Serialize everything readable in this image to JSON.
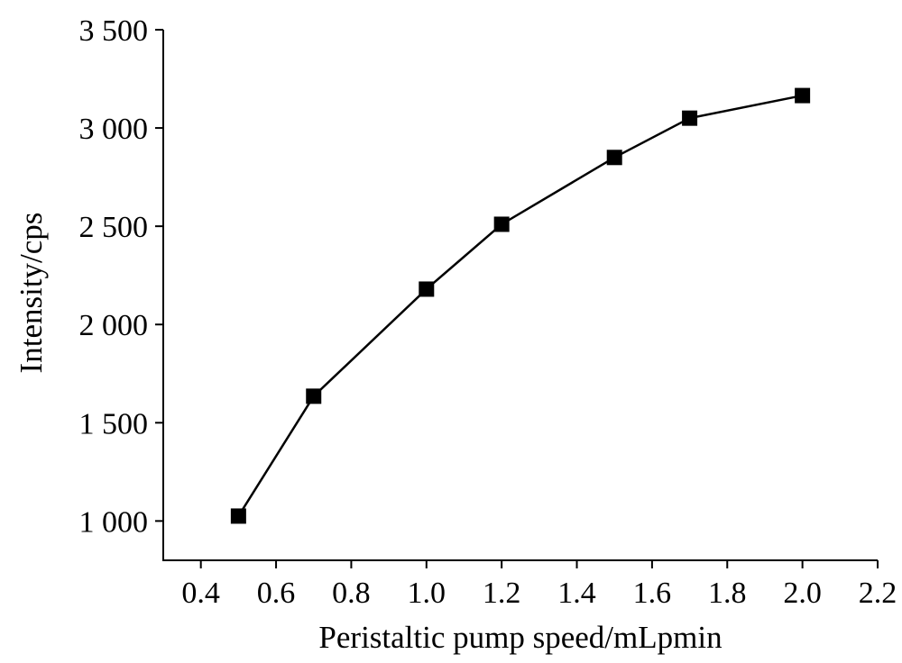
{
  "chart_data": {
    "type": "line",
    "xlabel": "Peristaltic pump speed/mLpmin",
    "ylabel": "Intensity/cps",
    "xlim": [
      0.3,
      2.2
    ],
    "ylim": [
      800,
      3500
    ],
    "x_ticks": [
      0.4,
      0.6,
      0.8,
      1.0,
      1.2,
      1.4,
      1.6,
      1.8,
      2.0,
      2.2
    ],
    "x_tick_labels": [
      "0.4",
      "0.6",
      "0.8",
      "1.0",
      "1.2",
      "1.4",
      "1.6",
      "1.8",
      "2.0",
      "2.2"
    ],
    "y_ticks": [
      1000,
      1500,
      2000,
      2500,
      3000,
      3500
    ],
    "y_tick_labels": [
      "1 000",
      "1 500",
      "2 000",
      "2 500",
      "3 000",
      "3 500"
    ],
    "grid": false,
    "marker": "square",
    "series": [
      {
        "x": [
          0.5,
          0.7,
          1.0,
          1.2,
          1.5,
          1.7,
          2.0
        ],
        "values": [
          1025,
          1635,
          2180,
          2510,
          2850,
          3050,
          3165
        ],
        "color": "#000000"
      }
    ]
  }
}
